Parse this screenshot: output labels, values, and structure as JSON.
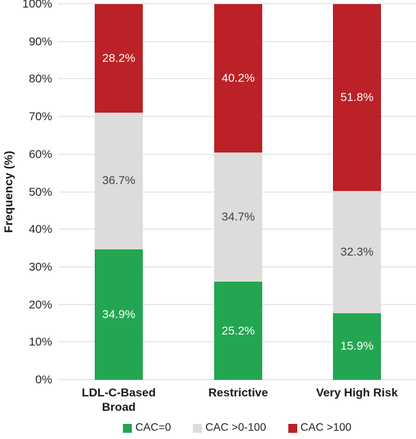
{
  "chart_data": {
    "type": "bar",
    "stacked": true,
    "percent_stacked": true,
    "title": "",
    "xlabel": "",
    "ylabel": "Frequency (%)",
    "ylim": [
      0,
      100
    ],
    "ytick_step": 10,
    "yticks": [
      "0%",
      "10%",
      "20%",
      "30%",
      "40%",
      "50%",
      "60%",
      "70%",
      "80%",
      "90%",
      "100%"
    ],
    "grid": true,
    "gridline_color": "#d9d9d9",
    "legend_position": "bottom",
    "categories": [
      "LDL-C-Based\nBroad",
      "Restrictive",
      "Very High Risk"
    ],
    "series": [
      {
        "name": "CAC=0",
        "color": "#23A651",
        "label_color": "#ffffff",
        "values": [
          34.9,
          25.2,
          15.9
        ],
        "labels": [
          "34.9%",
          "25.2%",
          "15.9%"
        ]
      },
      {
        "name": "CAC >0-100",
        "color": "#DCDCDA",
        "label_color": "#3f3f3f",
        "values": [
          36.7,
          34.7,
          32.3
        ],
        "labels": [
          "36.7%",
          "34.7%",
          "32.3%"
        ]
      },
      {
        "name": "CAC >100",
        "color": "#BB2127",
        "label_color": "#ffffff",
        "values": [
          28.2,
          40.2,
          51.8
        ],
        "labels": [
          "28.2%",
          "40.2%",
          "51.8%"
        ]
      }
    ]
  }
}
